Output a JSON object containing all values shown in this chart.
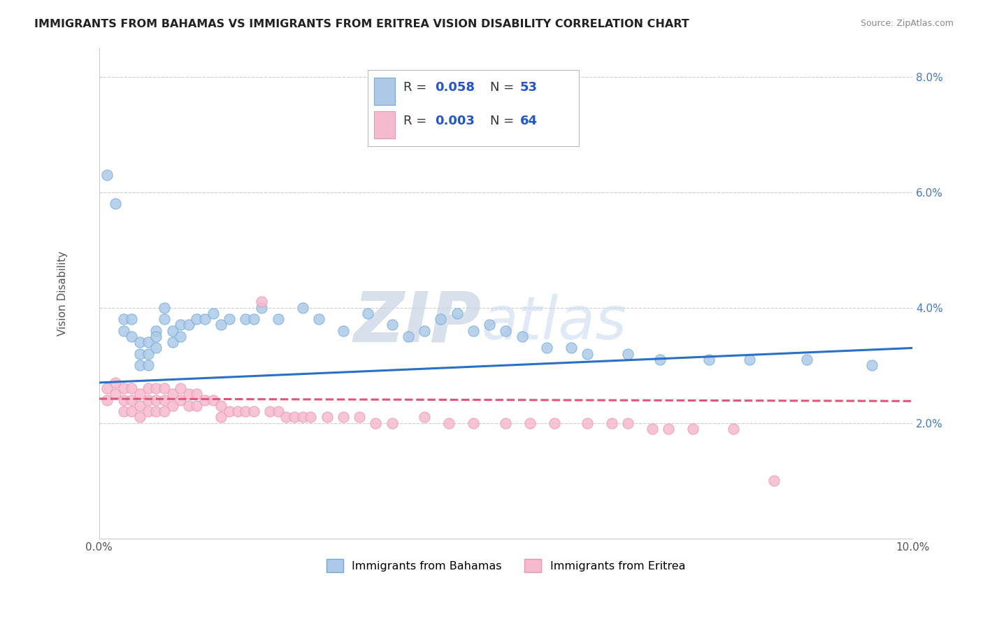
{
  "title": "IMMIGRANTS FROM BAHAMAS VS IMMIGRANTS FROM ERITREA VISION DISABILITY CORRELATION CHART",
  "source": "Source: ZipAtlas.com",
  "ylabel": "Vision Disability",
  "xlim": [
    0.0,
    0.1
  ],
  "ylim": [
    0.0,
    0.085
  ],
  "yticks": [
    0.0,
    0.02,
    0.04,
    0.06,
    0.08
  ],
  "xticks": [
    0.0,
    0.02,
    0.04,
    0.06,
    0.08,
    0.1
  ],
  "series": [
    {
      "label": "Immigrants from Bahamas",
      "R": 0.058,
      "N": 53,
      "color": "#aec9e8",
      "line_color": "#2970c6",
      "marker_edge": "#6aaad8",
      "x": [
        0.001,
        0.002,
        0.003,
        0.003,
        0.004,
        0.004,
        0.005,
        0.005,
        0.005,
        0.006,
        0.006,
        0.006,
        0.007,
        0.007,
        0.007,
        0.008,
        0.008,
        0.009,
        0.009,
        0.01,
        0.01,
        0.011,
        0.012,
        0.013,
        0.014,
        0.015,
        0.016,
        0.018,
        0.019,
        0.02,
        0.022,
        0.025,
        0.027,
        0.03,
        0.033,
        0.036,
        0.038,
        0.04,
        0.042,
        0.044,
        0.046,
        0.048,
        0.05,
        0.052,
        0.055,
        0.058,
        0.06,
        0.065,
        0.069,
        0.075,
        0.08,
        0.087,
        0.095
      ],
      "y": [
        0.063,
        0.058,
        0.038,
        0.036,
        0.035,
        0.038,
        0.034,
        0.032,
        0.03,
        0.034,
        0.032,
        0.03,
        0.036,
        0.035,
        0.033,
        0.04,
        0.038,
        0.036,
        0.034,
        0.037,
        0.035,
        0.037,
        0.038,
        0.038,
        0.039,
        0.037,
        0.038,
        0.038,
        0.038,
        0.04,
        0.038,
        0.04,
        0.038,
        0.036,
        0.039,
        0.037,
        0.035,
        0.036,
        0.038,
        0.039,
        0.036,
        0.037,
        0.036,
        0.035,
        0.033,
        0.033,
        0.032,
        0.032,
        0.031,
        0.031,
        0.031,
        0.031,
        0.03
      ],
      "trend_x": [
        0.0,
        0.1
      ],
      "trend_y": [
        0.027,
        0.033
      ]
    },
    {
      "label": "Immigrants from Eritrea",
      "R": 0.003,
      "N": 64,
      "color": "#f5bace",
      "line_color": "#e0557a",
      "marker_edge": "#e896b0",
      "x": [
        0.001,
        0.001,
        0.002,
        0.002,
        0.003,
        0.003,
        0.003,
        0.004,
        0.004,
        0.004,
        0.005,
        0.005,
        0.005,
        0.006,
        0.006,
        0.006,
        0.007,
        0.007,
        0.007,
        0.008,
        0.008,
        0.008,
        0.009,
        0.009,
        0.01,
        0.01,
        0.011,
        0.011,
        0.012,
        0.012,
        0.013,
        0.014,
        0.015,
        0.015,
        0.016,
        0.017,
        0.018,
        0.019,
        0.02,
        0.021,
        0.022,
        0.023,
        0.024,
        0.025,
        0.026,
        0.028,
        0.03,
        0.032,
        0.034,
        0.036,
        0.04,
        0.043,
        0.046,
        0.05,
        0.053,
        0.056,
        0.06,
        0.063,
        0.065,
        0.068,
        0.07,
        0.073,
        0.078,
        0.083
      ],
      "y": [
        0.026,
        0.024,
        0.027,
        0.025,
        0.026,
        0.024,
        0.022,
        0.026,
        0.024,
        0.022,
        0.025,
        0.023,
        0.021,
        0.026,
        0.024,
        0.022,
        0.026,
        0.024,
        0.022,
        0.026,
        0.024,
        0.022,
        0.025,
        0.023,
        0.026,
        0.024,
        0.025,
        0.023,
        0.025,
        0.023,
        0.024,
        0.024,
        0.023,
        0.021,
        0.022,
        0.022,
        0.022,
        0.022,
        0.041,
        0.022,
        0.022,
        0.021,
        0.021,
        0.021,
        0.021,
        0.021,
        0.021,
        0.021,
        0.02,
        0.02,
        0.021,
        0.02,
        0.02,
        0.02,
        0.02,
        0.02,
        0.02,
        0.02,
        0.02,
        0.019,
        0.019,
        0.019,
        0.019,
        0.01
      ],
      "trend_x": [
        0.0,
        0.1
      ],
      "trend_y": [
        0.0242,
        0.0238
      ]
    }
  ],
  "watermark_zip": "ZIP",
  "watermark_atlas": "atlas",
  "background_color": "#ffffff",
  "grid_color": "#cccccc",
  "title_fontsize": 11.5,
  "axis_label_fontsize": 11,
  "tick_fontsize": 11,
  "legend_fontsize": 13
}
